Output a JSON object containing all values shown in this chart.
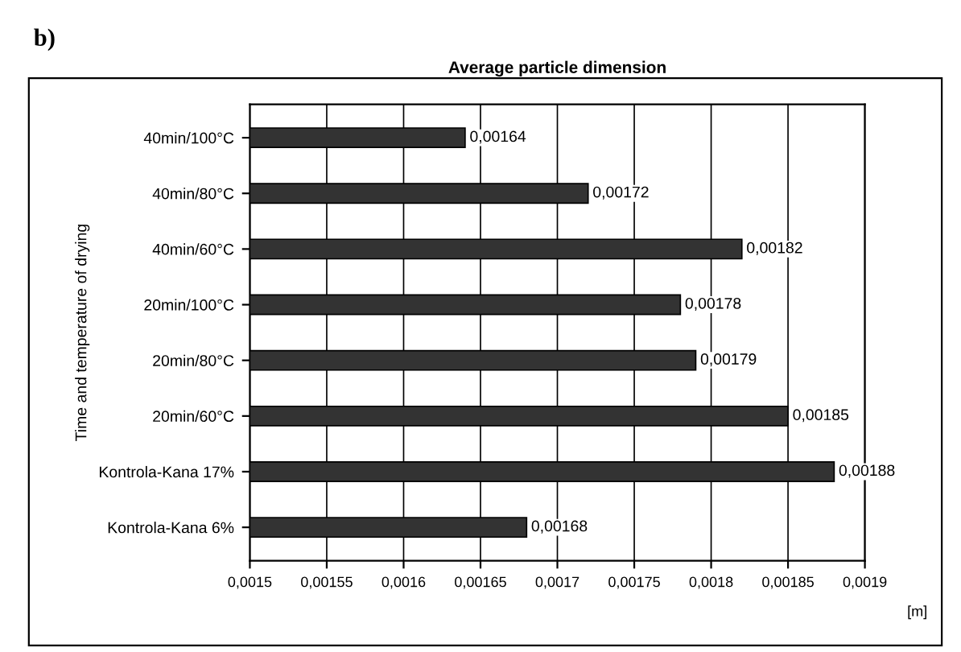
{
  "chart_data": {
    "type": "bar",
    "orientation": "horizontal",
    "title": "Average particle dimension",
    "ylabel": "Time and temperature of drying",
    "xlabel": "[m]",
    "annotations": [
      "b)"
    ],
    "categories": [
      "40min/100°C",
      "40min/80°C",
      "40min/60°C",
      "20min/100°C",
      "20min/80°C",
      "20min/60°C",
      "Kontrola-Kana 17%",
      "Kontrola-Kana 6%"
    ],
    "values": [
      0.00164,
      0.00172,
      0.00182,
      0.00178,
      0.00179,
      0.00185,
      0.00188,
      0.00168
    ],
    "value_labels": [
      "0,00164",
      "0,00172",
      "0,00182",
      "0,00178",
      "0,00179",
      "0,00185",
      "0,00188",
      "0,00168"
    ],
    "color": "#333333",
    "xlim": [
      0.0015,
      0.0019
    ],
    "xticks": [
      {
        "value": 0.0015,
        "label": "0,0015"
      },
      {
        "value": 0.00155,
        "label": "0,00155"
      },
      {
        "value": 0.0016,
        "label": "0,0016"
      },
      {
        "value": 0.00165,
        "label": "0,00165"
      },
      {
        "value": 0.0017,
        "label": "0,0017"
      },
      {
        "value": 0.00175,
        "label": "0,00175"
      },
      {
        "value": 0.0018,
        "label": "0,0018"
      },
      {
        "value": 0.00185,
        "label": "0,00185"
      },
      {
        "value": 0.0019,
        "label": "0,0019"
      }
    ],
    "grid": "x",
    "legend": false
  }
}
